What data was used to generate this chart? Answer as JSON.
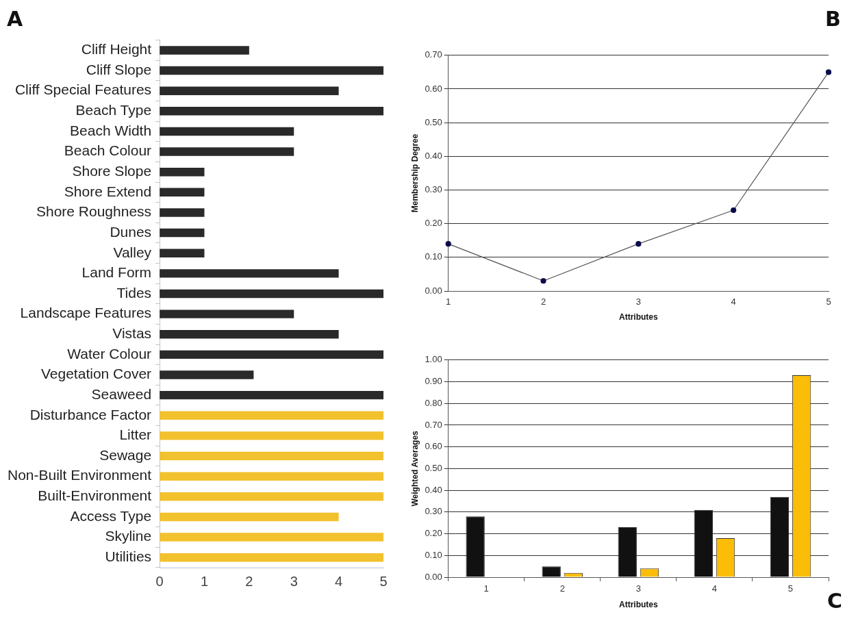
{
  "chart_data": [
    {
      "type": "bar",
      "title": "A",
      "orientation": "horizontal",
      "grid": false,
      "categories": [
        "Cliff Height",
        "Cliff Slope",
        "Cliff Special Features",
        "Beach Type",
        "Beach Width",
        "Beach Colour",
        "Shore Slope",
        "Shore Extend",
        "Shore Roughness",
        "Dunes",
        "Valley",
        "Land Form",
        "Tides",
        "Landscape Features",
        "Vistas",
        "Water Colour",
        "Vegetation Cover",
        "Seaweed",
        "Disturbance Factor",
        "Litter",
        "Sewage",
        "Non-Built Environment",
        "Built-Environment",
        "Access Type",
        "Skyline",
        "Utilities"
      ],
      "values": [
        2,
        5,
        4,
        5,
        3,
        3,
        1,
        1,
        1,
        1,
        1,
        4,
        5,
        3,
        4,
        5,
        2.1,
        5,
        5,
        5,
        5,
        5,
        5,
        4,
        5,
        5
      ],
      "colors": [
        "#2a2a2a",
        "#2a2a2a",
        "#2a2a2a",
        "#2a2a2a",
        "#2a2a2a",
        "#2a2a2a",
        "#2a2a2a",
        "#2a2a2a",
        "#2a2a2a",
        "#2a2a2a",
        "#2a2a2a",
        "#2a2a2a",
        "#2a2a2a",
        "#2a2a2a",
        "#2a2a2a",
        "#2a2a2a",
        "#2a2a2a",
        "#2a2a2a",
        "#f2c12e",
        "#f2c12e",
        "#f2c12e",
        "#f2c12e",
        "#f2c12e",
        "#f2c12e",
        "#f2c12e",
        "#f2c12e"
      ],
      "xlim": [
        0,
        5
      ],
      "xticks": [
        0,
        1,
        2,
        3,
        4,
        5
      ]
    },
    {
      "type": "line",
      "title": "B",
      "xlabel": "Attributes",
      "ylabel": "Membership Degree",
      "grid": "y",
      "marker": "circle",
      "line_style": "solid",
      "x": [
        1,
        2,
        3,
        4,
        5
      ],
      "series": [
        {
          "color": "#555555",
          "values": [
            0.14,
            0.03,
            0.14,
            0.24,
            0.65
          ]
        }
      ],
      "xlim": [
        1,
        5
      ],
      "xticks": [
        1,
        2,
        3,
        4,
        5
      ],
      "ylim": [
        0,
        0.7
      ],
      "yticks": [
        {
          "value": 0,
          "label": "0.00"
        },
        {
          "value": 0.1,
          "label": "0.10"
        },
        {
          "value": 0.2,
          "label": "0.20"
        },
        {
          "value": 0.3,
          "label": "0.30"
        },
        {
          "value": 0.4,
          "label": "0.40"
        },
        {
          "value": 0.5,
          "label": "0.50"
        },
        {
          "value": 0.6,
          "label": "0.60"
        },
        {
          "value": 0.7,
          "label": "0.70"
        }
      ]
    },
    {
      "type": "bar",
      "title": "C",
      "xlabel": "Attributes",
      "ylabel": "Weighted Averages",
      "grid": "y",
      "categories": [
        "1",
        "2",
        "3",
        "4",
        "5"
      ],
      "series": [
        {
          "color": "#111111",
          "values": [
            0.28,
            0.05,
            0.23,
            0.31,
            0.37
          ]
        },
        {
          "color": "#fbbd08",
          "values": [
            0,
            0.02,
            0.04,
            0.18,
            0.93
          ]
        }
      ],
      "ylim": [
        0,
        1
      ],
      "yticks": [
        {
          "value": 0,
          "label": "0.00"
        },
        {
          "value": 0.1,
          "label": "0.10"
        },
        {
          "value": 0.2,
          "label": "0.20"
        },
        {
          "value": 0.3,
          "label": "0.30"
        },
        {
          "value": 0.4,
          "label": "0.40"
        },
        {
          "value": 0.5,
          "label": "0.50"
        },
        {
          "value": 0.6,
          "label": "0.60"
        },
        {
          "value": 0.7,
          "label": "0.70"
        },
        {
          "value": 0.8,
          "label": "0.80"
        },
        {
          "value": 0.9,
          "label": "0.90"
        },
        {
          "value": 1,
          "label": "1.00"
        }
      ]
    }
  ]
}
